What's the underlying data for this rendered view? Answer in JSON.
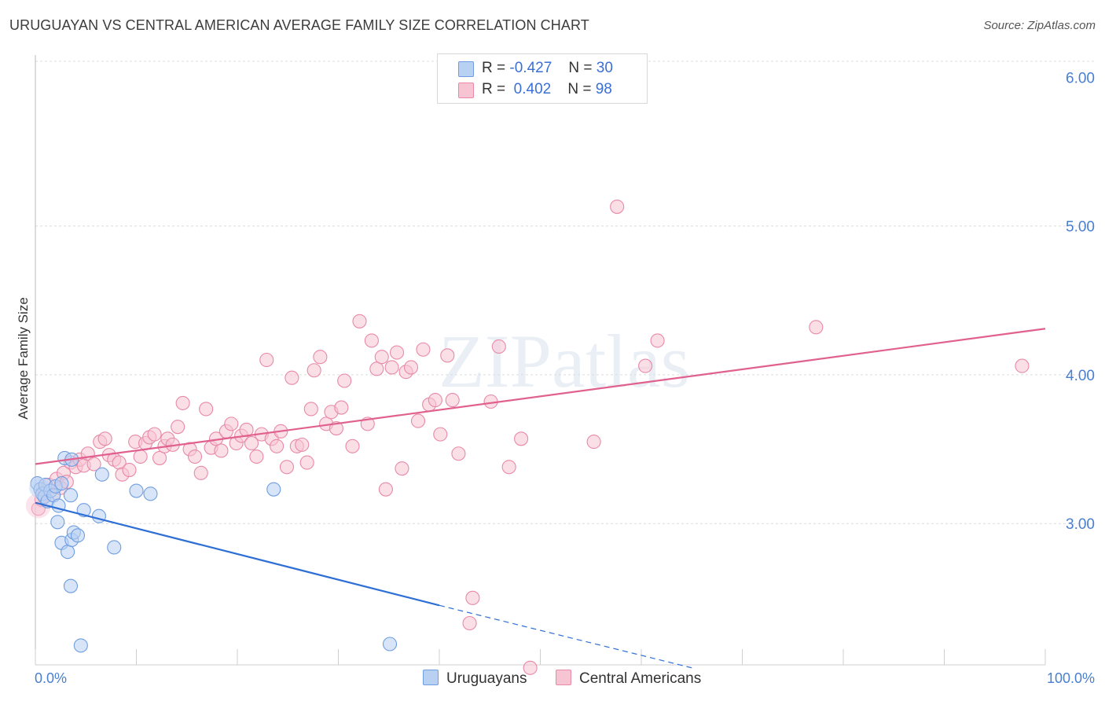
{
  "title": "URUGUAYAN VS CENTRAL AMERICAN AVERAGE FAMILY SIZE CORRELATION CHART",
  "source": "Source: ZipAtlas.com",
  "watermark": "ZIPatlas",
  "legend": {
    "rows": [
      {
        "r_label": "R =",
        "r_value": "-0.427",
        "n_label": "N =",
        "n_value": "30"
      },
      {
        "r_label": "R =",
        "r_value": "0.402",
        "n_label": "N =",
        "n_value": "98"
      }
    ]
  },
  "bottom_legend": [
    "Uruguayans",
    "Central Americans"
  ],
  "colors": {
    "blue_fill": "#b8d0f2",
    "blue_stroke": "#6f9ee0",
    "blue_line": "#2e6fd6",
    "pink_fill": "#f7c4d4",
    "pink_stroke": "#e889a8",
    "pink_line": "#e0608e",
    "tick": "#4a7fd0",
    "grid": "#dcdcdc"
  },
  "chart_data": {
    "type": "scatter",
    "title": "URUGUAYAN VS CENTRAL AMERICAN AVERAGE FAMILY SIZE CORRELATION CHART",
    "xlabel": "",
    "ylabel": "Average Family Size",
    "xlim": [
      0,
      100
    ],
    "ylim": [
      2.05,
      6.15
    ],
    "x_tick_labels": [
      "0.0%",
      "100.0%"
    ],
    "y_ticks": [
      3.0,
      4.0,
      5.0,
      6.0
    ],
    "y_tick_labels": [
      "3.00",
      "4.00",
      "5.00",
      "6.00"
    ],
    "grid": true,
    "series": [
      {
        "name": "Uruguayans",
        "r": -0.427,
        "n": 30,
        "trend": {
          "x0": 0,
          "y0": 3.14,
          "x1": 40,
          "y1": 2.45,
          "dash_to_x": 65,
          "dash_to_y": 2.03
        },
        "points": [
          [
            0.2,
            3.27
          ],
          [
            0.5,
            3.23
          ],
          [
            0.7,
            3.2
          ],
          [
            0.9,
            3.18
          ],
          [
            1.0,
            3.26
          ],
          [
            1.2,
            3.15
          ],
          [
            1.5,
            3.22
          ],
          [
            1.8,
            3.19
          ],
          [
            2.0,
            3.25
          ],
          [
            2.2,
            3.01
          ],
          [
            2.3,
            3.12
          ],
          [
            2.6,
            3.27
          ],
          [
            2.6,
            2.87
          ],
          [
            2.9,
            3.44
          ],
          [
            3.2,
            2.81
          ],
          [
            3.5,
            3.19
          ],
          [
            3.6,
            3.43
          ],
          [
            3.5,
            2.58
          ],
          [
            3.6,
            2.89
          ],
          [
            3.8,
            2.94
          ],
          [
            4.2,
            2.92
          ],
          [
            4.5,
            2.18
          ],
          [
            4.8,
            3.09
          ],
          [
            6.3,
            3.05
          ],
          [
            6.6,
            3.33
          ],
          [
            7.8,
            2.84
          ],
          [
            10.0,
            3.22
          ],
          [
            11.4,
            3.2
          ],
          [
            23.6,
            3.23
          ],
          [
            35.1,
            2.19
          ]
        ]
      },
      {
        "name": "Central Americans",
        "r": 0.402,
        "n": 98,
        "trend": {
          "x0": 0,
          "y0": 3.4,
          "x1": 100,
          "y1": 4.31
        },
        "points": [
          [
            0.3,
            3.1
          ],
          [
            0.6,
            3.16
          ],
          [
            0.9,
            3.22
          ],
          [
            1.3,
            3.26
          ],
          [
            1.8,
            3.19
          ],
          [
            2.1,
            3.3
          ],
          [
            2.5,
            3.24
          ],
          [
            2.8,
            3.34
          ],
          [
            3.1,
            3.28
          ],
          [
            3.5,
            3.41
          ],
          [
            4.0,
            3.38
          ],
          [
            4.4,
            3.43
          ],
          [
            4.8,
            3.39
          ],
          [
            5.2,
            3.47
          ],
          [
            5.8,
            3.4
          ],
          [
            6.4,
            3.55
          ],
          [
            6.9,
            3.57
          ],
          [
            7.3,
            3.46
          ],
          [
            7.8,
            3.43
          ],
          [
            8.3,
            3.41
          ],
          [
            8.6,
            3.33
          ],
          [
            9.3,
            3.36
          ],
          [
            9.9,
            3.55
          ],
          [
            10.4,
            3.45
          ],
          [
            10.9,
            3.54
          ],
          [
            11.3,
            3.58
          ],
          [
            11.8,
            3.6
          ],
          [
            12.3,
            3.44
          ],
          [
            12.8,
            3.52
          ],
          [
            13.1,
            3.57
          ],
          [
            13.6,
            3.53
          ],
          [
            14.1,
            3.65
          ],
          [
            14.6,
            3.81
          ],
          [
            15.3,
            3.5
          ],
          [
            15.8,
            3.45
          ],
          [
            16.4,
            3.34
          ],
          [
            16.9,
            3.77
          ],
          [
            17.4,
            3.51
          ],
          [
            17.9,
            3.57
          ],
          [
            18.4,
            3.49
          ],
          [
            18.9,
            3.62
          ],
          [
            19.4,
            3.67
          ],
          [
            19.9,
            3.54
          ],
          [
            20.4,
            3.59
          ],
          [
            20.9,
            3.63
          ],
          [
            21.4,
            3.54
          ],
          [
            21.9,
            3.45
          ],
          [
            22.4,
            3.6
          ],
          [
            22.9,
            4.1
          ],
          [
            23.4,
            3.57
          ],
          [
            23.9,
            3.52
          ],
          [
            24.3,
            3.62
          ],
          [
            24.9,
            3.38
          ],
          [
            25.4,
            3.98
          ],
          [
            25.9,
            3.52
          ],
          [
            26.4,
            3.53
          ],
          [
            26.9,
            3.41
          ],
          [
            27.3,
            3.77
          ],
          [
            27.6,
            4.03
          ],
          [
            28.2,
            4.12
          ],
          [
            28.8,
            3.67
          ],
          [
            29.3,
            3.75
          ],
          [
            29.8,
            3.64
          ],
          [
            30.3,
            3.78
          ],
          [
            30.6,
            3.96
          ],
          [
            31.4,
            3.52
          ],
          [
            32.1,
            4.36
          ],
          [
            32.9,
            3.67
          ],
          [
            33.3,
            4.23
          ],
          [
            33.8,
            4.04
          ],
          [
            34.3,
            4.12
          ],
          [
            34.7,
            3.23
          ],
          [
            35.3,
            4.05
          ],
          [
            35.8,
            4.15
          ],
          [
            36.3,
            3.37
          ],
          [
            36.7,
            4.02
          ],
          [
            37.2,
            4.05
          ],
          [
            37.9,
            3.69
          ],
          [
            38.4,
            4.17
          ],
          [
            39.0,
            3.8
          ],
          [
            39.6,
            3.83
          ],
          [
            40.1,
            3.6
          ],
          [
            40.8,
            4.13
          ],
          [
            41.3,
            3.83
          ],
          [
            41.9,
            3.47
          ],
          [
            43.3,
            2.5
          ],
          [
            43.0,
            2.33
          ],
          [
            45.1,
            3.82
          ],
          [
            45.9,
            4.19
          ],
          [
            46.9,
            3.38
          ],
          [
            48.1,
            3.57
          ],
          [
            49.0,
            2.03
          ],
          [
            55.3,
            3.55
          ],
          [
            57.6,
            5.13
          ],
          [
            60.4,
            4.06
          ],
          [
            61.6,
            4.23
          ],
          [
            77.3,
            4.32
          ],
          [
            97.7,
            4.06
          ]
        ]
      }
    ]
  }
}
